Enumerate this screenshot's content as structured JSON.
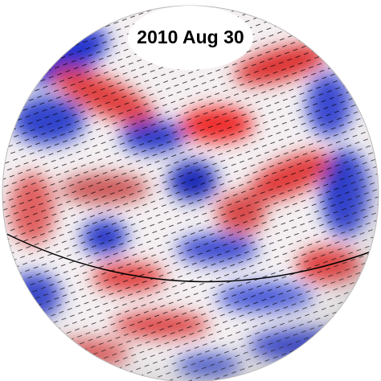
{
  "label": "2010 Aug 30"
}
